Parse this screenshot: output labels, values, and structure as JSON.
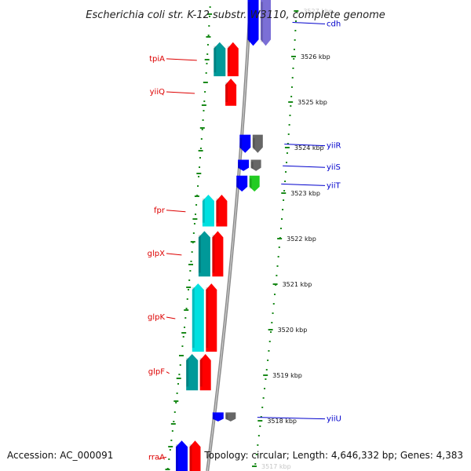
{
  "title": "Escherichia coli str. K-12 substr. W3110, complete genome",
  "footer": {
    "accession": "Accession: AC_000091",
    "topology": "Topology: circular; Length: 4,646,332 bp; Genes: 4,383"
  },
  "colors": {
    "forward": "#ff0000",
    "reverse": "#0000ff",
    "cds_forward": "#00e0e0",
    "cds_forward_dark": "#009999",
    "reverse_grey": "#666666",
    "rna": "#22cc22",
    "ruler_dots": "#1a8a1a",
    "backbone": "#8a8a8a",
    "label_forward": "#dd0000",
    "label_reverse": "#0000cc"
  },
  "ticks": [
    {
      "kbp": 3527,
      "label": "3527 kbp"
    },
    {
      "kbp": 3526,
      "label": "3526 kbp"
    },
    {
      "kbp": 3525,
      "label": "3525 kbp"
    },
    {
      "kbp": 3524,
      "label": "3524 kbp"
    },
    {
      "kbp": 3523,
      "label": "3523 kbp"
    },
    {
      "kbp": 3522,
      "label": "3522 kbp"
    },
    {
      "kbp": 3521,
      "label": "3521 kbp"
    },
    {
      "kbp": 3520,
      "label": "3520 kbp"
    },
    {
      "kbp": 3519,
      "label": "3519 kbp"
    },
    {
      "kbp": 3518,
      "label": "3518 kbp"
    },
    {
      "kbp": 3517,
      "label": "3517 kbp"
    }
  ],
  "features": [
    {
      "name": "cdh",
      "strand": "reverse",
      "start": 3526.2,
      "end": 3527.3,
      "cds_color": "slate",
      "labeled": true
    },
    {
      "name": "tpiA",
      "strand": "forward",
      "start": 3525.55,
      "end": 3526.35,
      "cds_color": "teal",
      "labeled": true
    },
    {
      "name": "yiiQ",
      "strand": "forward",
      "start": 3524.9,
      "end": 3525.55,
      "cds_color": "none",
      "labeled": true
    },
    {
      "name": "yiiR",
      "strand": "reverse",
      "start": 3523.85,
      "end": 3524.3,
      "cds_color": "grey",
      "labeled": true
    },
    {
      "name": "yiiS",
      "strand": "reverse",
      "start": 3523.45,
      "end": 3523.75,
      "cds_color": "grey",
      "labeled": true
    },
    {
      "name": "yiiT",
      "strand": "reverse",
      "start": 3523.0,
      "end": 3523.4,
      "cds_color": "green",
      "labeled": true
    },
    {
      "name": "fpr",
      "strand": "forward",
      "start": 3522.25,
      "end": 3523.0,
      "cds_color": "cyan",
      "labeled": true
    },
    {
      "name": "glpX",
      "strand": "forward",
      "start": 3521.15,
      "end": 3522.2,
      "cds_color": "teal",
      "labeled": true
    },
    {
      "name": "glpK",
      "strand": "forward",
      "start": 3519.5,
      "end": 3521.05,
      "cds_color": "cyan",
      "labeled": true
    },
    {
      "name": "glpF",
      "strand": "forward",
      "start": 3518.65,
      "end": 3519.5,
      "cds_color": "teal",
      "labeled": true
    },
    {
      "name": "yiiU",
      "strand": "reverse",
      "start": 3517.95,
      "end": 3518.2,
      "cds_color": "grey",
      "labeled": true
    },
    {
      "name": "rraA",
      "strand": "forward",
      "start": 3516.8,
      "end": 3517.6,
      "cds_color": "blue",
      "labeled": true
    }
  ]
}
